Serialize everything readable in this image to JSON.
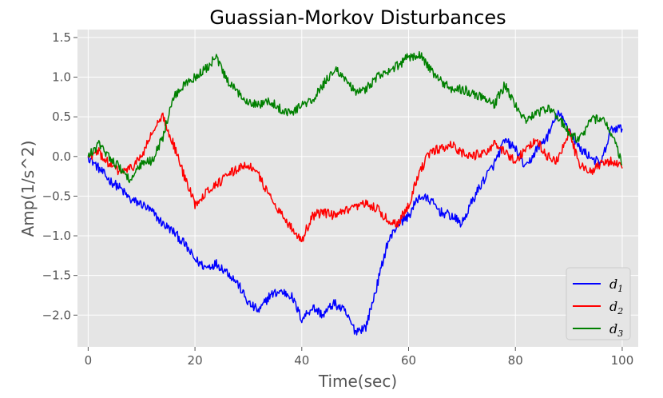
{
  "chart_data": {
    "type": "line",
    "title": "Guassian-Morkov Disturbances",
    "xlabel": "Time(sec)",
    "ylabel": "Amp(1/s^2)",
    "xlim": [
      -2,
      103
    ],
    "ylim": [
      -2.4,
      1.6
    ],
    "xticks": [
      0,
      20,
      40,
      60,
      80,
      100
    ],
    "xtick_labels": [
      "0",
      "20",
      "40",
      "60",
      "80",
      "100"
    ],
    "yticks": [
      1.5,
      1.0,
      0.5,
      0.0,
      -0.5,
      -1.0,
      -1.5,
      -2.0
    ],
    "ytick_labels": [
      "1.5",
      "1.0",
      "0.5",
      "0.0",
      "−0.5",
      "−1.0",
      "−1.5",
      "−2.0"
    ],
    "grid": true,
    "legend_position": "bottom-right",
    "x": [
      0,
      2,
      4,
      6,
      8,
      10,
      12,
      14,
      16,
      18,
      20,
      22,
      24,
      26,
      28,
      30,
      32,
      34,
      36,
      38,
      40,
      42,
      44,
      46,
      48,
      50,
      52,
      54,
      56,
      58,
      60,
      62,
      64,
      66,
      68,
      70,
      72,
      74,
      76,
      78,
      80,
      82,
      84,
      86,
      88,
      90,
      92,
      94,
      96,
      98,
      100
    ],
    "series": [
      {
        "name": "d",
        "subscript": "1",
        "color": "#0000ff",
        "values": [
          0.0,
          -0.15,
          -0.3,
          -0.4,
          -0.55,
          -0.6,
          -0.7,
          -0.85,
          -0.95,
          -1.1,
          -1.3,
          -1.4,
          -1.35,
          -1.45,
          -1.6,
          -1.85,
          -1.95,
          -1.75,
          -1.7,
          -1.75,
          -2.05,
          -1.9,
          -2.0,
          -1.85,
          -1.95,
          -2.2,
          -2.15,
          -1.65,
          -1.1,
          -0.85,
          -0.75,
          -0.5,
          -0.55,
          -0.7,
          -0.75,
          -0.85,
          -0.55,
          -0.3,
          -0.1,
          0.2,
          0.1,
          -0.15,
          0.1,
          0.25,
          0.55,
          0.35,
          0.1,
          0.0,
          -0.1,
          0.35,
          0.35
        ]
      },
      {
        "name": "d",
        "subscript": "2",
        "color": "#ff0000",
        "values": [
          0.0,
          0.05,
          -0.1,
          -0.2,
          -0.15,
          0.0,
          0.3,
          0.5,
          0.15,
          -0.25,
          -0.6,
          -0.45,
          -0.35,
          -0.25,
          -0.15,
          -0.1,
          -0.25,
          -0.5,
          -0.7,
          -0.9,
          -1.05,
          -0.75,
          -0.7,
          -0.75,
          -0.7,
          -0.65,
          -0.6,
          -0.65,
          -0.8,
          -0.85,
          -0.6,
          -0.2,
          0.05,
          0.1,
          0.15,
          0.05,
          0.0,
          0.05,
          0.15,
          0.05,
          -0.05,
          0.1,
          0.2,
          0.0,
          -0.05,
          0.3,
          -0.1,
          -0.2,
          -0.1,
          -0.05,
          -0.15
        ]
      },
      {
        "name": "d",
        "subscript": "3",
        "color": "#008000",
        "values": [
          0.0,
          0.15,
          0.0,
          -0.15,
          -0.3,
          -0.1,
          -0.05,
          0.25,
          0.75,
          0.9,
          1.0,
          1.1,
          1.25,
          0.95,
          0.8,
          0.7,
          0.65,
          0.7,
          0.6,
          0.55,
          0.65,
          0.7,
          0.9,
          1.1,
          1.0,
          0.8,
          0.85,
          1.0,
          1.05,
          1.15,
          1.25,
          1.3,
          1.1,
          0.95,
          0.85,
          0.85,
          0.8,
          0.75,
          0.65,
          0.9,
          0.65,
          0.45,
          0.55,
          0.6,
          0.5,
          0.3,
          0.2,
          0.45,
          0.5,
          0.3,
          -0.1
        ]
      }
    ]
  }
}
